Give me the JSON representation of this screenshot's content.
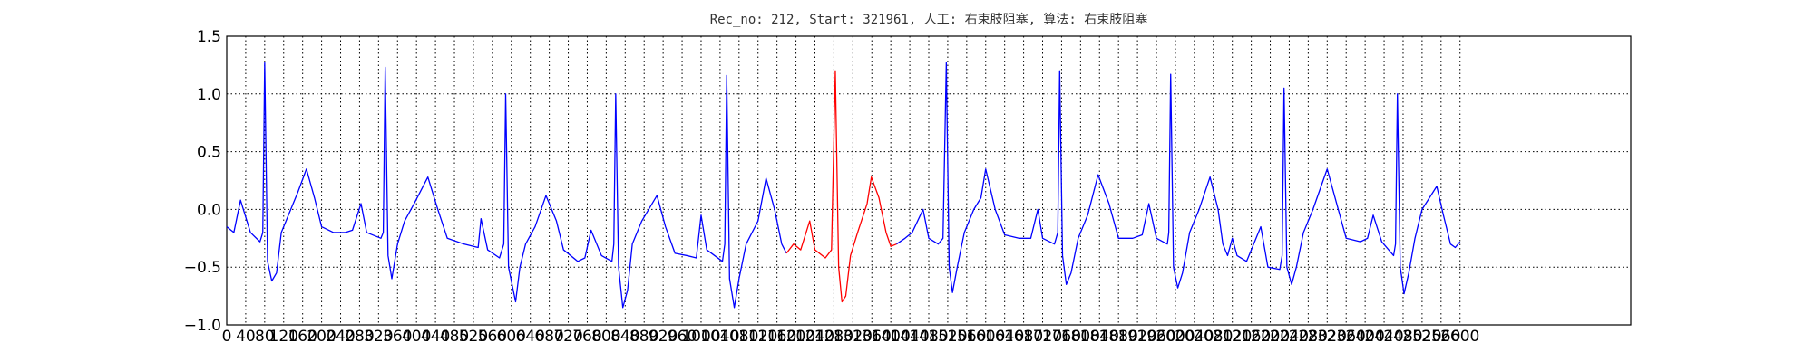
{
  "chart_data": {
    "type": "line",
    "title": "Rec_no: 212, Start: 321961, 人工: 右束肢阻塞, 算法: 右束肢阻塞",
    "x": [
      0,
      15,
      29,
      50,
      70,
      76,
      80,
      86,
      95,
      105,
      115,
      130,
      150,
      168,
      185,
      200,
      225,
      250,
      265,
      283,
      295,
      325,
      330,
      334,
      340,
      348,
      360,
      375,
      395,
      424,
      445,
      465,
      500,
      530,
      536,
      550,
      575,
      584,
      588,
      594,
      609,
      618,
      630,
      650,
      673,
      695,
      710,
      740,
      755,
      768,
      790,
      812,
      816,
      820,
      826,
      835,
      845,
      855,
      875,
      907,
      925,
      945,
      970,
      990,
      1000,
      1012,
      1045,
      1050,
      1054,
      1060,
      1070,
      1080,
      1095,
      1120,
      1137,
      1155,
      1170,
      1180,
      1195,
      1210,
      1229,
      1240,
      1262,
      1275,
      1283,
      1290,
      1297,
      1305,
      1315,
      1330,
      1350,
      1359,
      1375,
      1390,
      1400,
      1412,
      1430,
      1445,
      1468,
      1480,
      1500,
      1510,
      1517,
      1523,
      1530,
      1540,
      1555,
      1575,
      1590,
      1600,
      1620,
      1640,
      1670,
      1695,
      1710,
      1720,
      1745,
      1752,
      1756,
      1762,
      1770,
      1780,
      1795,
      1815,
      1837,
      1860,
      1880,
      1910,
      1930,
      1944,
      1960,
      1983,
      1986,
      1990,
      1996,
      2005,
      2015,
      2030,
      2050,
      2073,
      2090,
      2100,
      2110,
      2120,
      2130,
      2150,
      2180,
      2195,
      2220,
      2225,
      2229,
      2235,
      2245,
      2255,
      2270,
      2290,
      2320,
      2340,
      2360,
      2390,
      2405,
      2417,
      2435,
      2460,
      2464,
      2468,
      2474,
      2482,
      2492,
      2505,
      2520,
      2551,
      2565,
      2580,
      2590,
      2600
    ],
    "series": [
      {
        "color": "#0000ff",
        "values": [
          -0.15,
          -0.2,
          0.08,
          -0.2,
          -0.28,
          -0.2,
          1.27,
          -0.45,
          -0.62,
          -0.55,
          -0.2,
          -0.05,
          0.15,
          0.35,
          0.1,
          -0.15,
          -0.2,
          -0.2,
          -0.18,
          0.05,
          -0.2,
          -0.25,
          -0.2,
          1.23,
          -0.4,
          -0.6,
          -0.3,
          -0.1,
          0.05,
          0.28,
          0.0,
          -0.25,
          -0.3,
          -0.33,
          -0.08,
          -0.35,
          -0.42,
          -0.3,
          1.0,
          -0.5,
          -0.8,
          -0.5,
          -0.3,
          -0.15,
          0.12,
          -0.1,
          -0.35,
          -0.45,
          -0.42,
          -0.18,
          -0.4,
          -0.45,
          -0.3,
          1.0,
          -0.5,
          -0.85,
          -0.7,
          -0.3,
          -0.1,
          0.12,
          -0.15,
          -0.38,
          -0.4,
          -0.42,
          -0.05,
          -0.35,
          -0.45,
          -0.3,
          1.16,
          -0.6,
          -0.85,
          -0.6,
          -0.3,
          -0.1,
          0.27,
          0.0,
          -0.3,
          -0.38,
          null,
          null,
          null,
          null,
          null,
          null,
          null,
          null,
          null,
          null,
          null,
          null,
          null,
          null,
          null,
          null,
          null,
          -0.3,
          -0.25,
          -0.2,
          0.0,
          -0.25,
          -0.3,
          -0.25,
          1.27,
          -0.5,
          -0.72,
          -0.5,
          -0.2,
          0.0,
          0.1,
          0.35,
          0.0,
          -0.22,
          -0.25,
          -0.25,
          0.0,
          -0.25,
          -0.3,
          -0.2,
          1.2,
          -0.4,
          -0.65,
          -0.55,
          -0.25,
          -0.05,
          0.3,
          0.05,
          -0.25,
          -0.25,
          -0.22,
          0.05,
          -0.25,
          -0.3,
          -0.2,
          1.17,
          -0.5,
          -0.68,
          -0.55,
          -0.2,
          0.0,
          0.28,
          0.0,
          -0.3,
          -0.4,
          -0.25,
          -0.4,
          -0.45,
          -0.15,
          -0.5,
          -0.52,
          -0.4,
          1.05,
          -0.5,
          -0.65,
          -0.5,
          -0.2,
          0.0,
          0.35,
          0.05,
          -0.25,
          -0.28,
          -0.25,
          -0.05,
          -0.28,
          -0.4,
          -0.3,
          1.0,
          -0.5,
          -0.73,
          -0.55,
          -0.25,
          0.0,
          0.2,
          -0.05,
          -0.3,
          -0.33,
          -0.28
        ]
      },
      {
        "color": "#ff0000",
        "values": [
          null,
          null,
          null,
          null,
          null,
          null,
          null,
          null,
          null,
          null,
          null,
          null,
          null,
          null,
          null,
          null,
          null,
          null,
          null,
          null,
          null,
          null,
          null,
          null,
          null,
          null,
          null,
          null,
          null,
          null,
          null,
          null,
          null,
          null,
          null,
          null,
          null,
          null,
          null,
          null,
          null,
          null,
          null,
          null,
          null,
          null,
          null,
          null,
          null,
          null,
          null,
          null,
          null,
          null,
          null,
          null,
          null,
          null,
          null,
          null,
          null,
          null,
          null,
          null,
          null,
          null,
          null,
          null,
          null,
          null,
          null,
          null,
          null,
          null,
          null,
          null,
          null,
          -0.38,
          -0.3,
          -0.35,
          -0.1,
          -0.35,
          -0.42,
          -0.35,
          1.2,
          -0.5,
          -0.8,
          -0.75,
          -0.4,
          -0.2,
          0.05,
          0.28,
          0.1,
          -0.2,
          -0.32,
          -0.3,
          null,
          null,
          null,
          null,
          null,
          null,
          null,
          null,
          null,
          null,
          null,
          null,
          null,
          null,
          null,
          null,
          null,
          null,
          null,
          null,
          null,
          null,
          null,
          null,
          null,
          null,
          null,
          null,
          null,
          null,
          null,
          null,
          null,
          null,
          null,
          null,
          null,
          null,
          null,
          null,
          null,
          null,
          null,
          null,
          null,
          null,
          null,
          null,
          null,
          null,
          null,
          null,
          null,
          null,
          null,
          null,
          null,
          null,
          null,
          null,
          null,
          null,
          null,
          null,
          null,
          null,
          null,
          null,
          null,
          null,
          null,
          null,
          null,
          null,
          null,
          null,
          null,
          null,
          null,
          null
        ]
      }
    ],
    "xlim": [
      0,
      2960
    ],
    "xticks": [
      0,
      40,
      80,
      120,
      160,
      200,
      240,
      280,
      320,
      360,
      400,
      440,
      480,
      520,
      560,
      600,
      640,
      680,
      720,
      760,
      800,
      840,
      880,
      920,
      960,
      1000,
      1040,
      1080,
      1120,
      1160,
      1200,
      1240,
      1280,
      1320,
      1360,
      1400,
      1440,
      1480,
      1520,
      1560,
      1600,
      1640,
      1680,
      1720,
      1760,
      1800,
      1840,
      1880,
      1920,
      1960,
      2000,
      2040,
      2080,
      2120,
      2160,
      2200,
      2240,
      2280,
      2320,
      2360,
      2400,
      2440,
      2480,
      2520,
      2560,
      2600
    ],
    "ylim": [
      -1,
      1.5
    ],
    "yticks": [
      {
        "value": -1,
        "label": "−1.0"
      },
      {
        "value": -0.5,
        "label": "−0.5"
      },
      {
        "value": 0,
        "label": "0.0"
      },
      {
        "value": 0.5,
        "label": "0.5"
      },
      {
        "value": 1,
        "label": "1.0"
      },
      {
        "value": 1.5,
        "label": "1.5"
      }
    ],
    "grid": true
  }
}
